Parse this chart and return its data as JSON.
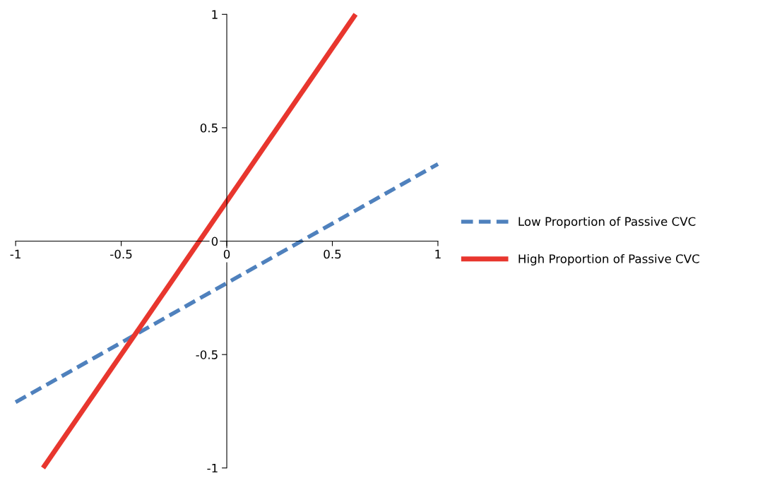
{
  "chart_data": {
    "type": "line",
    "xlim": [
      -1,
      1
    ],
    "ylim": [
      -1,
      1
    ],
    "xticks": [
      -1,
      -0.5,
      0,
      0.5,
      1
    ],
    "yticks": [
      -1,
      -0.5,
      0,
      0.5,
      1
    ],
    "grid": false,
    "legend": "right",
    "marker": "none",
    "series": [
      {
        "name": "Low Proportion of Passive CVC",
        "color": "#4f81bd",
        "x": [
          -1,
          1
        ],
        "values": [
          -0.71,
          0.34
        ],
        "line_style": "dashed"
      },
      {
        "name": "High Proportion of Passive CVC",
        "color": "#e8362e",
        "x": [
          -0.87,
          0.61
        ],
        "values": [
          -1,
          1
        ],
        "line_style": "solid"
      }
    ]
  }
}
